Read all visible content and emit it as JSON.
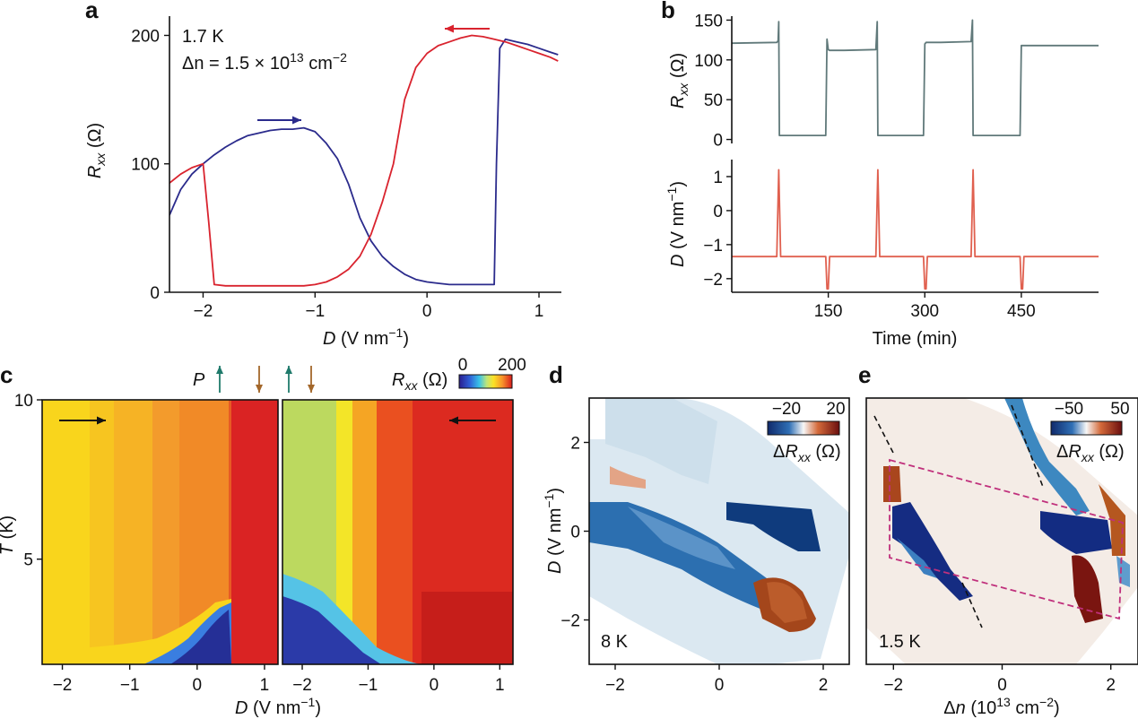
{
  "panels": {
    "a": "a",
    "b": "b",
    "c": "c",
    "d": "d",
    "e": "e"
  },
  "colors": {
    "sweep_up": "#2b2b8c",
    "sweep_down": "#d9232e",
    "resistance_trace": "#60797a",
    "field_trace": "#e0604f",
    "cut_line": "#c0307c",
    "arrow_green": "#1f7a6b",
    "arrow_brown": "#a3672a"
  },
  "chart_data": [
    {
      "panel": "a",
      "type": "line",
      "annotation_temperature": "1.7 K",
      "annotation_density": {
        "prefix": "Δn = 1.5 × 10",
        "exponent": "13",
        "unit": " cm",
        "unit_exp": "−2"
      },
      "xlabel": {
        "var": "D",
        "unit": " (V nm",
        "exp": "−1",
        "close": ")"
      },
      "ylabel": {
        "var": "R",
        "sub": "xx",
        "unit": " (Ω)"
      },
      "xlim": [
        -2.3,
        1.2
      ],
      "ylim": [
        0,
        215
      ],
      "xticks": [
        -2,
        -1,
        0,
        1
      ],
      "xtick_labels": [
        "−2",
        "−1",
        "0",
        "1"
      ],
      "yticks": [
        0,
        100,
        200
      ],
      "ytick_labels": [
        "0",
        "100",
        "200"
      ],
      "series": [
        {
          "color": "sweep_up",
          "x": [
            -2.3,
            -2.2,
            -2.1,
            -2.0,
            -1.9,
            -1.8,
            -1.7,
            -1.6,
            -1.5,
            -1.4,
            -1.3,
            -1.2,
            -1.1,
            -1.0,
            -0.9,
            -0.8,
            -0.7,
            -0.6,
            -0.5,
            -0.4,
            -0.3,
            -0.2,
            -0.1,
            0.0,
            0.1,
            0.2,
            0.3,
            0.4,
            0.5,
            0.6,
            0.62,
            0.65,
            0.7,
            0.8,
            0.9,
            1.0,
            1.1,
            1.17
          ],
          "y": [
            60,
            80,
            92,
            100,
            107,
            113,
            118,
            122,
            124,
            126,
            127,
            127,
            128,
            125,
            116,
            104,
            84,
            58,
            40,
            28,
            20,
            14,
            10,
            8,
            7,
            6,
            6,
            6,
            6,
            6,
            100,
            190,
            197,
            195,
            193,
            190,
            187,
            185
          ]
        },
        {
          "color": "sweep_down",
          "x": [
            1.17,
            1.1,
            1.0,
            0.9,
            0.8,
            0.7,
            0.6,
            0.5,
            0.4,
            0.3,
            0.2,
            0.1,
            0.0,
            -0.1,
            -0.2,
            -0.3,
            -0.4,
            -0.5,
            -0.6,
            -0.7,
            -0.8,
            -0.9,
            -1.0,
            -1.1,
            -1.2,
            -1.4,
            -1.6,
            -1.8,
            -1.9,
            -1.95,
            -2.0,
            -2.1,
            -2.2,
            -2.3
          ],
          "y": [
            180,
            183,
            186,
            189,
            192,
            195,
            197,
            199,
            200,
            198,
            195,
            192,
            186,
            175,
            150,
            100,
            70,
            45,
            28,
            18,
            12,
            8,
            6,
            5,
            5,
            5,
            5,
            5,
            6,
            55,
            100,
            97,
            92,
            85
          ]
        }
      ],
      "arrows": [
        {
          "direction": "right",
          "color": "sweep_up"
        },
        {
          "direction": "left",
          "color": "sweep_down"
        }
      ]
    },
    {
      "panel": "b",
      "type": "line",
      "xlabel": "Time (min)",
      "xlim": [
        0,
        570
      ],
      "xticks": [
        150,
        300,
        450
      ],
      "xtick_labels": [
        "150",
        "300",
        "450"
      ],
      "subplots": [
        {
          "ylabel": {
            "var": "R",
            "sub": "xx",
            "unit": " (Ω)"
          },
          "ylim": [
            -5,
            155
          ],
          "yticks": [
            0,
            50,
            100,
            150
          ],
          "ytick_labels": [
            "0",
            "50",
            "100",
            "150"
          ],
          "color": "resistance_trace",
          "x": [
            0,
            70,
            72,
            73,
            74,
            76,
            145,
            146,
            148,
            150,
            152,
            160,
            175,
            224,
            226,
            227,
            228,
            230,
            298,
            300,
            302,
            305,
            325,
            372,
            374,
            375,
            376,
            378,
            448,
            450,
            452,
            455,
            475,
            570
          ],
          "y": [
            121,
            122,
            124,
            148,
            5,
            5,
            5,
            5,
            126,
            113,
            112,
            112,
            112,
            113,
            148,
            5,
            5,
            5,
            5,
            120,
            122,
            122,
            122,
            123,
            150,
            5,
            5,
            5,
            5,
            118,
            118,
            118,
            118,
            118
          ]
        },
        {
          "ylabel": {
            "var": "D",
            "unit": " (V nm",
            "exp": "−1",
            "close": ")"
          },
          "ylim": [
            -2.4,
            1.5
          ],
          "yticks": [
            -2,
            -1,
            0,
            1
          ],
          "ytick_labels": [
            "−2",
            "−1",
            "0",
            "1"
          ],
          "color": "field_trace",
          "x": [
            0,
            70,
            73,
            76,
            146,
            148,
            150,
            152,
            224,
            227,
            230,
            298,
            300,
            302,
            304,
            372,
            375,
            378,
            448,
            450,
            452,
            454,
            570
          ],
          "y": [
            -1.35,
            -1.35,
            1.2,
            -1.35,
            -1.35,
            -2.3,
            -2.3,
            -1.35,
            -1.35,
            1.2,
            -1.35,
            -1.35,
            -2.3,
            -2.3,
            -1.35,
            -1.35,
            1.2,
            -1.35,
            -1.35,
            -2.3,
            -2.3,
            -1.35,
            -1.35
          ]
        }
      ]
    },
    {
      "panel": "c",
      "type": "heatmap",
      "ylabel": {
        "var": "T",
        "unit": " (K)"
      },
      "xlabel": {
        "var": "D",
        "unit": " (V nm",
        "exp": "−1",
        "close": ")"
      },
      "ylim": [
        1.7,
        10
      ],
      "yticks": [
        5,
        10
      ],
      "ytick_labels": [
        "5",
        "10"
      ],
      "left_xlim": [
        -2.3,
        1.2
      ],
      "left_xticks": [
        -2,
        -1,
        0,
        1
      ],
      "left_xtick_labels": [
        "−2",
        "−1",
        "0",
        "1"
      ],
      "right_xlim": [
        -2.3,
        1.2
      ],
      "right_xticks": [
        -2,
        -1,
        0,
        1
      ],
      "right_xtick_labels": [
        "−2",
        "−1",
        "0",
        "1"
      ],
      "polarization_label": "P",
      "colorbar": {
        "label": {
          "var": "R",
          "sub": "xx",
          "unit": " (Ω)"
        },
        "min": 0,
        "max": 200,
        "min_label": "0",
        "max_label": "200"
      },
      "transition_left_D": 0.65,
      "transition_right_D": -2.0
    },
    {
      "panel": "d",
      "type": "heatmap",
      "annotation": "8 K",
      "ylabel": {
        "var": "D",
        "unit": " (V nm",
        "exp": "−1",
        "close": ")"
      },
      "xlim": [
        -2.5,
        2.5
      ],
      "ylim": [
        -3,
        3
      ],
      "xticks": [
        -2,
        0,
        2
      ],
      "xtick_labels": [
        "−2",
        "0",
        "2"
      ],
      "yticks": [
        -2,
        0,
        2
      ],
      "ytick_labels": [
        "−2",
        "0",
        "2"
      ],
      "colorbar": {
        "label": {
          "prefix": "Δ",
          "var": "R",
          "sub": "xx",
          "unit": " (Ω)"
        },
        "min": -20,
        "max": 20,
        "min_label": "−20",
        "max_label": "20"
      }
    },
    {
      "panel": "e",
      "type": "heatmap",
      "annotation": "1.5 K",
      "xlabel": {
        "prefix": "Δ",
        "var": "n",
        "unit": " (10",
        "exp1": "13",
        "unit2": " cm",
        "exp2": "−2",
        "close": ")"
      },
      "xlim": [
        -2.5,
        2.5
      ],
      "ylim": [
        -3,
        3
      ],
      "xticks": [
        -2,
        0,
        2
      ],
      "xtick_labels": [
        "−2",
        "0",
        "2"
      ],
      "colorbar": {
        "label": {
          "prefix": "Δ",
          "var": "R",
          "sub": "xx",
          "unit": " (Ω)"
        },
        "min": -50,
        "max": 50,
        "min_label": "−50",
        "max_label": "50"
      }
    }
  ]
}
